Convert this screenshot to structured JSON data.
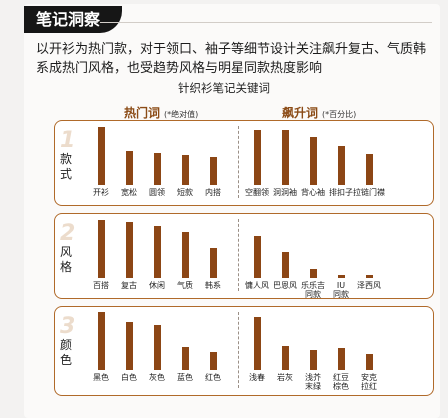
{
  "header": {
    "tag": "笔记洞察",
    "intro": "以开衫为热门款，对于领口、袖子等细节设计关注飙升复古、气质韩系成热门风格，也受趋势风格与明星同款热度影响",
    "subtitle": "针织衫笔记关键词"
  },
  "columns": {
    "hot": {
      "label": "热门词",
      "note": "(*绝对值)"
    },
    "rising": {
      "label": "飙升词",
      "note": "(*百分比)"
    }
  },
  "colors": {
    "bar": "#8c4615",
    "border": "#b06a2a",
    "heading": "#8b4b16"
  },
  "chart_data": [
    {
      "type": "bar",
      "row": "款式",
      "number": "1",
      "column": "热门词",
      "categories": [
        "开衫",
        "宽松",
        "圆领",
        "短款",
        "内搭"
      ],
      "values": [
        1.0,
        0.58,
        0.55,
        0.52,
        0.49
      ]
    },
    {
      "type": "bar",
      "row": "款式",
      "number": "1",
      "column": "飙升词",
      "categories": [
        "空翻领",
        "洞洞袖",
        "背心袖",
        "排扣子",
        "拉链门襟"
      ],
      "values": [
        0.95,
        0.95,
        0.83,
        0.67,
        0.53
      ]
    },
    {
      "type": "bar",
      "row": "风格",
      "number": "2",
      "column": "热门词",
      "categories": [
        "百搭",
        "复古",
        "休闲",
        "气质",
        "韩系"
      ],
      "values": [
        1.0,
        0.97,
        0.9,
        0.8,
        0.52
      ]
    },
    {
      "type": "bar",
      "row": "风格",
      "number": "2",
      "column": "飙升词",
      "categories": [
        "慵人风",
        "巴恩风",
        "乐乐吉\n同款",
        "IU\n同款",
        "泽西风"
      ],
      "values": [
        0.72,
        0.45,
        0.16,
        0.06,
        0.05
      ]
    },
    {
      "type": "bar",
      "row": "颜色",
      "number": "3",
      "column": "热门词",
      "categories": [
        "黑色",
        "白色",
        "灰色",
        "蓝色",
        "红色"
      ],
      "values": [
        1.0,
        0.83,
        0.77,
        0.4,
        0.31
      ]
    },
    {
      "type": "bar",
      "row": "颜色",
      "number": "3",
      "column": "飙升词",
      "categories": [
        "浅春",
        "岩灰",
        "浅芥\n末绿",
        "红豆\n棕色",
        "安克\n拉红"
      ],
      "values": [
        0.92,
        0.42,
        0.35,
        0.38,
        0.28
      ]
    }
  ]
}
